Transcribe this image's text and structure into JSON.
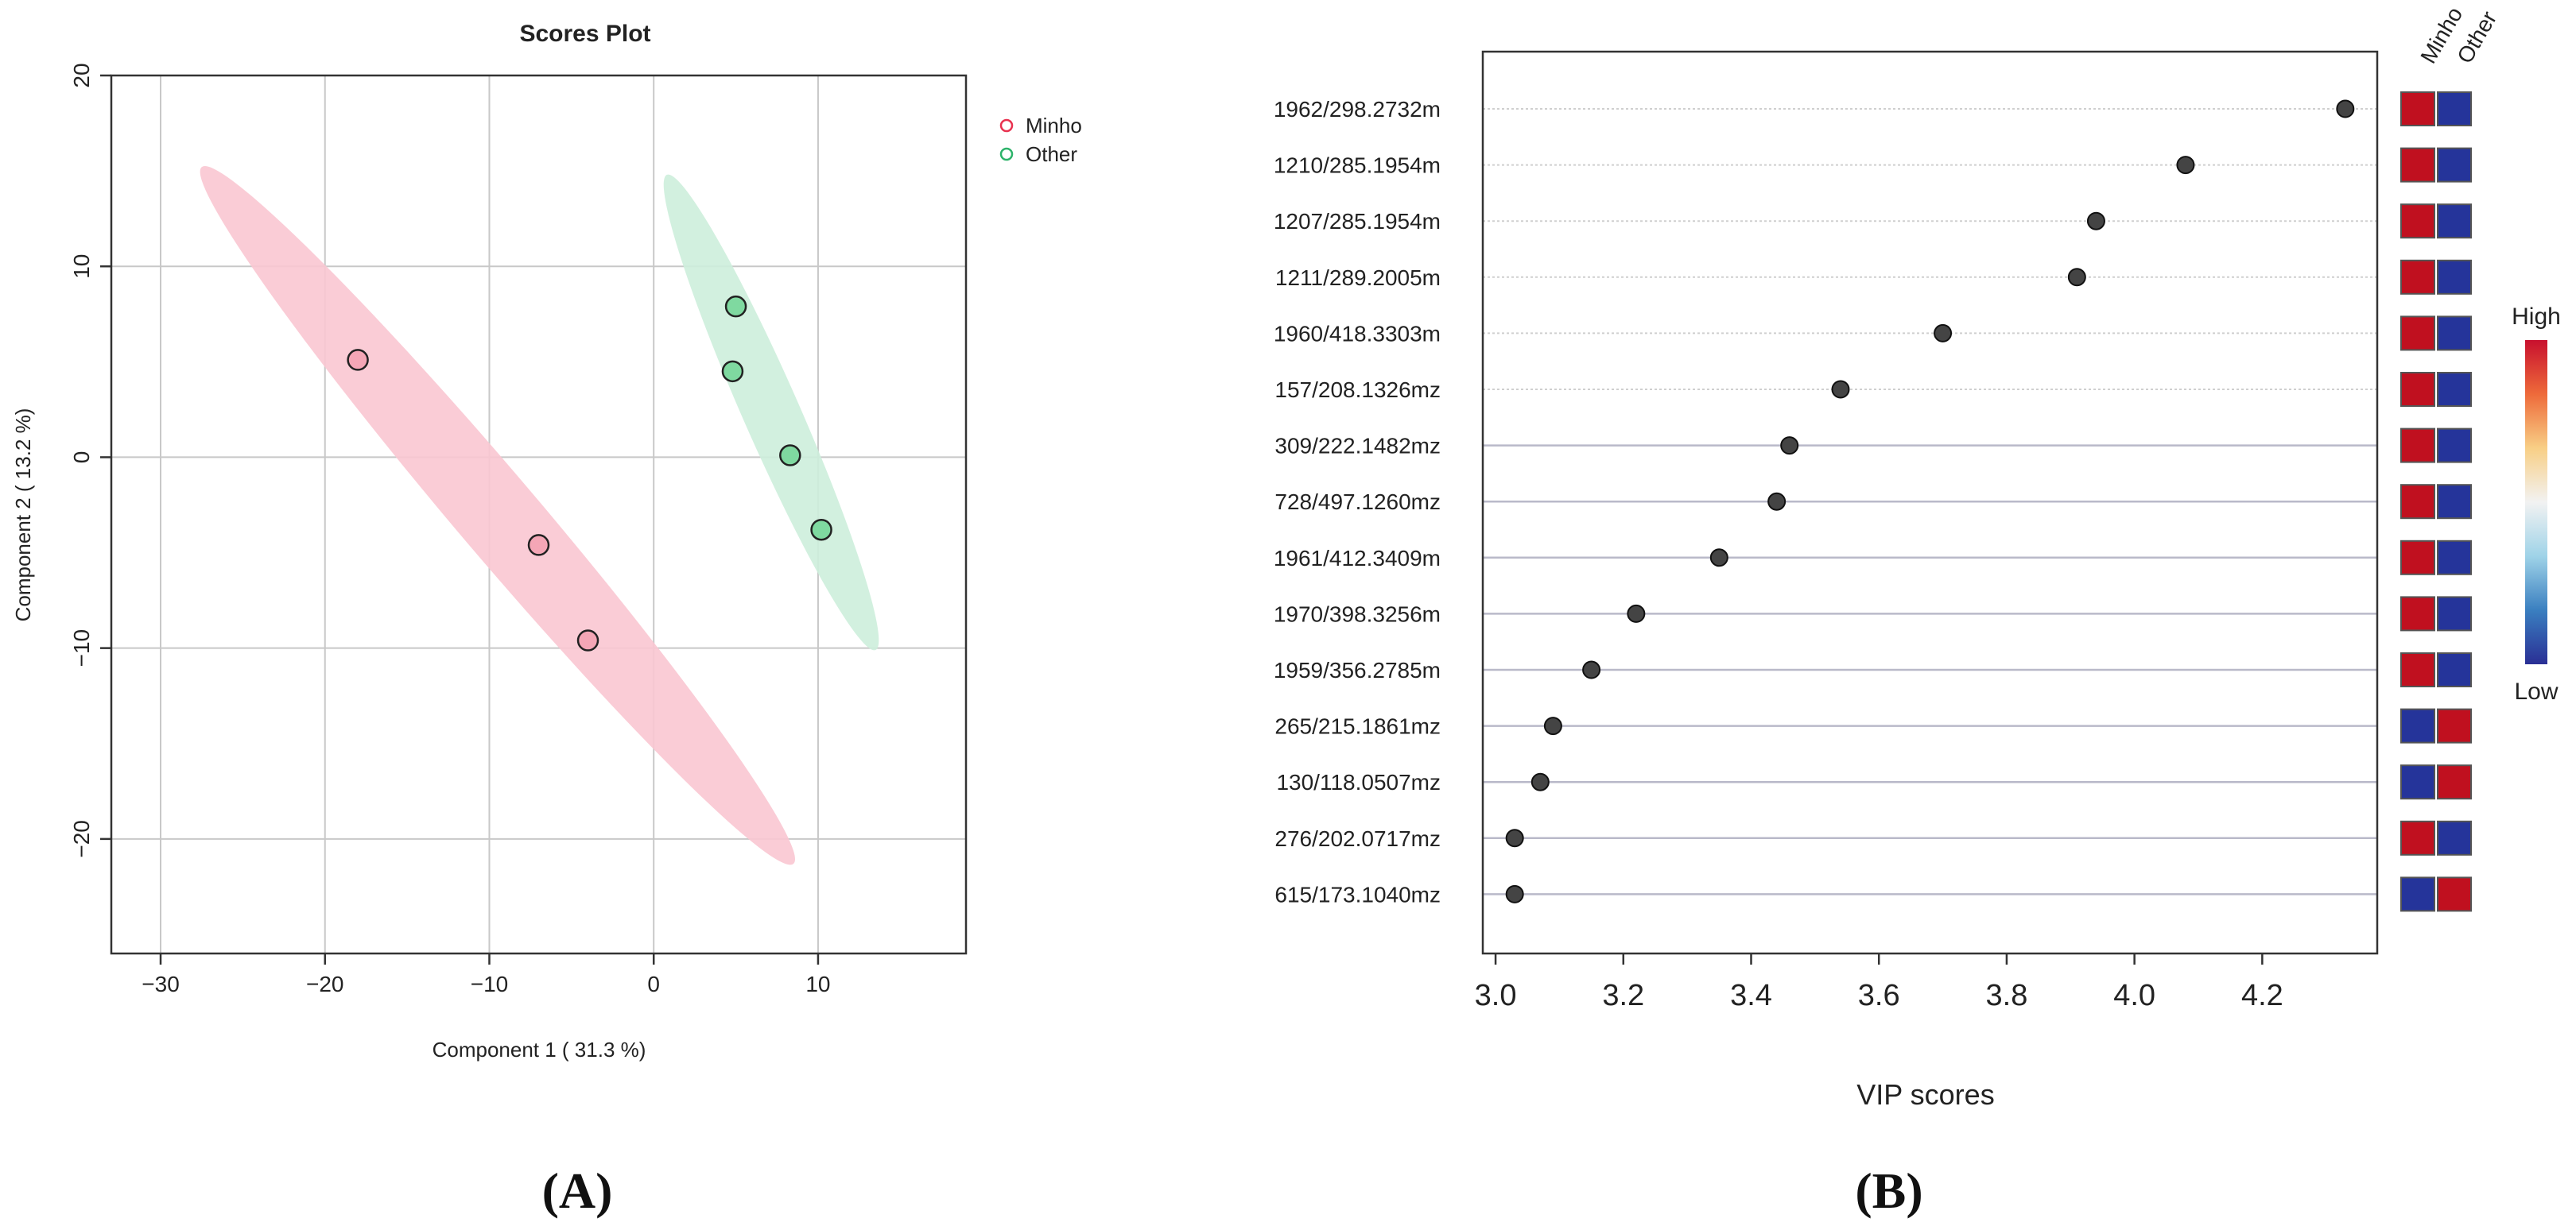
{
  "panels": [
    {
      "label": "(A)"
    },
    {
      "label": "(B)"
    }
  ],
  "chart_data": [
    {
      "type": "scatter",
      "title": "Scores Plot",
      "xlabel": "Component 1 ( 31.3 %)",
      "ylabel": "Component 2 ( 13.2 %)",
      "xlim": [
        -33,
        19
      ],
      "ylim": [
        -26,
        20
      ],
      "xticks": [
        -30,
        -20,
        -10,
        0,
        10
      ],
      "xtick_labels": [
        "−30",
        "−20",
        "−10",
        "0",
        "10"
      ],
      "yticks": [
        -20,
        -10,
        0,
        10,
        20
      ],
      "ytick_labels": [
        "−20",
        "−10",
        "0",
        "10",
        "20"
      ],
      "grid": true,
      "legend_position": "top-right",
      "series": [
        {
          "name": "Minho",
          "color": "#e8314f",
          "fill": "#f4a6b6",
          "ellipse_fill": "#f9c6d1",
          "ellipse_ends": [
            [
              -27.5,
              15.2
            ],
            [
              8.5,
              -21.3
            ]
          ],
          "ellipse_minor": 2.3,
          "points": [
            [
              -18,
              5.1
            ],
            [
              -7,
              -4.6
            ],
            [
              -4,
              -9.6
            ]
          ]
        },
        {
          "name": "Other",
          "color": "#2db36a",
          "fill": "#7fd9a0",
          "ellipse_fill": "#cdeedb",
          "ellipse_ends": [
            [
              0.8,
              14.8
            ],
            [
              13.5,
              -10.1
            ]
          ],
          "ellipse_minor": 1.6,
          "points": [
            [
              5,
              7.9
            ],
            [
              4.8,
              4.5
            ],
            [
              8.3,
              0.1
            ],
            [
              10.2,
              -3.8
            ]
          ]
        }
      ]
    },
    {
      "type": "scatter",
      "subtype": "vip-dot-plot",
      "title": "",
      "xlabel": "VIP scores",
      "ylabel": "",
      "xlim": [
        2.98,
        4.38
      ],
      "xticks": [
        3.0,
        3.2,
        3.4,
        3.6,
        3.8,
        4.0,
        4.2
      ],
      "xtick_labels": [
        "3.0",
        "3.2",
        "3.4",
        "3.6",
        "3.8",
        "4.0",
        "4.2"
      ],
      "features": [
        "1962/298.2732m",
        "1210/285.1954m",
        "1207/285.1954m",
        "1211/289.2005m",
        "1960/418.3303m",
        "157/208.1326mz",
        "309/222.1482mz",
        "728/497.1260mz",
        "1961/412.3409m",
        "1970/398.3256m",
        "1959/356.2785m",
        "265/215.1861mz",
        "130/118.0507mz",
        "276/202.0717mz",
        "615/173.1040mz"
      ],
      "values": [
        4.33,
        4.08,
        3.94,
        3.91,
        3.7,
        3.54,
        3.46,
        3.44,
        3.35,
        3.22,
        3.15,
        3.09,
        3.07,
        3.03,
        3.03
      ],
      "heatmap_columns": [
        "Minho",
        "Other"
      ],
      "heatmap": [
        [
          "High",
          "Low"
        ],
        [
          "High",
          "Low"
        ],
        [
          "High",
          "Low"
        ],
        [
          "High",
          "Low"
        ],
        [
          "High",
          "Low"
        ],
        [
          "High",
          "Low"
        ],
        [
          "High",
          "Low"
        ],
        [
          "High",
          "Low"
        ],
        [
          "High",
          "Low"
        ],
        [
          "High",
          "Low"
        ],
        [
          "High",
          "Low"
        ],
        [
          "Low",
          "High"
        ],
        [
          "Low",
          "High"
        ],
        [
          "High",
          "Low"
        ],
        [
          "Low",
          "High"
        ]
      ],
      "heatmap_colors": {
        "High": "#c0101f",
        "Low": "#25349a"
      },
      "colorbar": {
        "high_label": "High",
        "low_label": "Low",
        "colors": [
          "#2a2f95",
          "#3a7fc0",
          "#9fd3e8",
          "#f2f2f2",
          "#f8cf86",
          "#ee6a3a",
          "#c8102e"
        ]
      },
      "point_color": "#444444"
    }
  ]
}
